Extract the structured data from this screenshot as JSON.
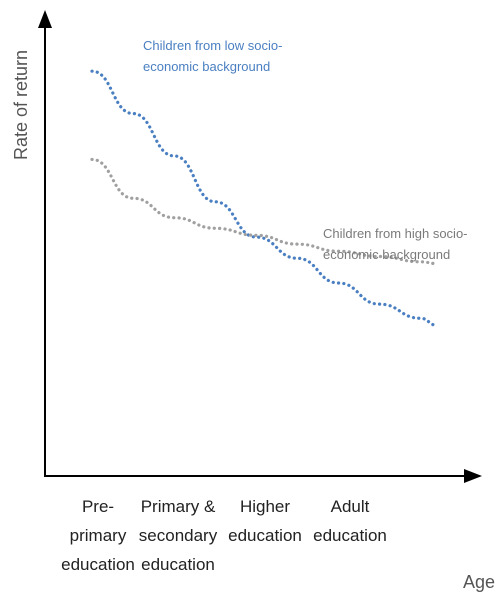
{
  "chart_data": {
    "type": "line",
    "style": "dotted",
    "grid": false,
    "xlabel": "Age",
    "ylabel": "Rate of return",
    "categories": [
      [
        "Pre-",
        "primary",
        "education"
      ],
      [
        "Primary &",
        "secondary",
        "education"
      ],
      [
        "Higher",
        "education"
      ],
      [
        "Adult",
        "education"
      ]
    ],
    "xlim": [
      0,
      4.3
    ],
    "ylim": [
      0,
      10
    ],
    "series": [
      {
        "name": "Children from low socio-economic background",
        "name_lines": [
          "Children from low socio-",
          "economic background"
        ],
        "color": "#4a7fc1",
        "points": [
          [
            0,
            9.4
          ],
          [
            0.5,
            8.2
          ],
          [
            1,
            7.0
          ],
          [
            1.5,
            5.7
          ],
          [
            2,
            4.7
          ],
          [
            2.5,
            4.1
          ],
          [
            3,
            3.4
          ],
          [
            3.5,
            2.8
          ],
          [
            4,
            2.4
          ],
          [
            4.2,
            2.2
          ]
        ]
      },
      {
        "name": "Children from high socio-economic background",
        "name_lines": [
          "Children from high socio-",
          "economic background"
        ],
        "color": "#a0a0a0",
        "points": [
          [
            0,
            6.9
          ],
          [
            0.5,
            5.8
          ],
          [
            1,
            5.25
          ],
          [
            1.5,
            4.95
          ],
          [
            2,
            4.75
          ],
          [
            2.5,
            4.5
          ],
          [
            3,
            4.3
          ],
          [
            3.5,
            4.15
          ],
          [
            4,
            4.0
          ],
          [
            4.2,
            3.95
          ]
        ]
      }
    ]
  }
}
